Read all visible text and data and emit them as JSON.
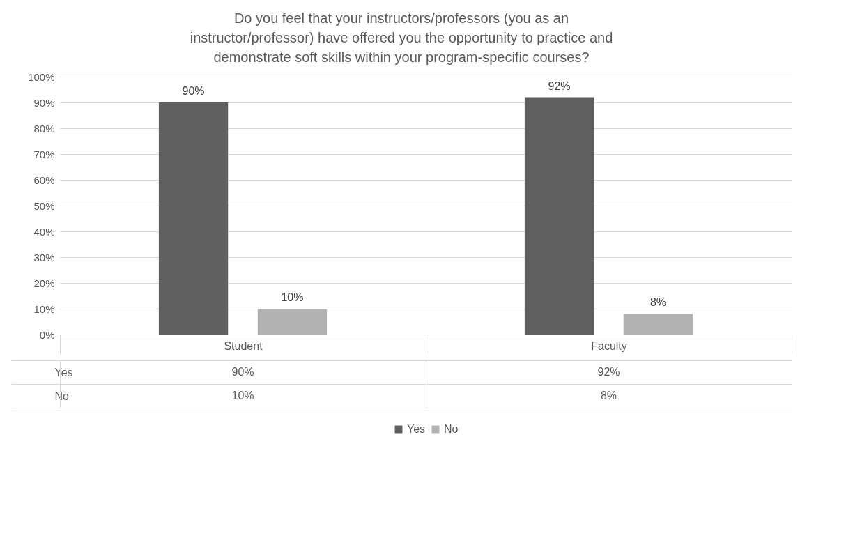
{
  "chart_data": {
    "type": "bar",
    "title": [
      "Do you feel that your instructors/professors (you as an",
      "instructor/professor) have offered you the opportunity to practice and",
      "demonstrate soft skills within your program-specific courses?"
    ],
    "categories": [
      "Student",
      "Faculty"
    ],
    "series": [
      {
        "name": "Yes",
        "color": "#5f5f5f",
        "values": [
          90,
          92
        ],
        "value_labels": [
          "90%",
          "92%"
        ]
      },
      {
        "name": "No",
        "color": "#b2b2b2",
        "values": [
          10,
          8
        ],
        "value_labels": [
          "10%",
          "8%"
        ]
      }
    ],
    "ylim": [
      0,
      100
    ],
    "yticks": [
      {
        "value": 0,
        "label": "0%"
      },
      {
        "value": 10,
        "label": "10%"
      },
      {
        "value": 20,
        "label": "20%"
      },
      {
        "value": 30,
        "label": "30%"
      },
      {
        "value": 40,
        "label": "40%"
      },
      {
        "value": 50,
        "label": "50%"
      },
      {
        "value": 60,
        "label": "60%"
      },
      {
        "value": 70,
        "label": "70%"
      },
      {
        "value": 80,
        "label": "80%"
      },
      {
        "value": 90,
        "label": "90%"
      },
      {
        "value": 100,
        "label": "100%"
      }
    ],
    "grid": "y",
    "legend": "bottom"
  }
}
